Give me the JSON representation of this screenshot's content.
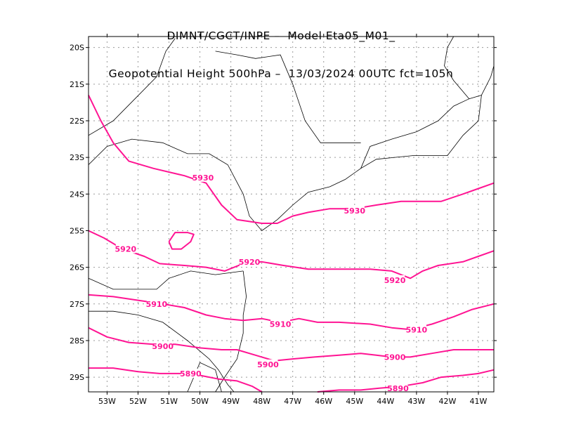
{
  "header": {
    "line1": "DIMNT/CGCT/INPE –  Model Eta05_M01_",
    "line2": "Geopotential Height 500hPa –  13/03/2024 00UTC fct=105h"
  },
  "map": {
    "lon_range": [
      -53.6,
      -40.5
    ],
    "lat_range": [
      -29.4,
      -19.7
    ],
    "lat_ticks": [
      "20S",
      "21S",
      "22S",
      "23S",
      "24S",
      "25S",
      "26S",
      "27S",
      "28S",
      "29S"
    ],
    "lon_ticks": [
      "53W",
      "52W",
      "51W",
      "50W",
      "49W",
      "48W",
      "47W",
      "46W",
      "45W",
      "44W",
      "43W",
      "42W",
      "41W"
    ],
    "grid": "on",
    "contour_color": "#ff1493",
    "border_color": "#000000",
    "contours": [
      {
        "level": "5930",
        "points": [
          [
            -53.6,
            -21.3
          ],
          [
            -53.2,
            -22.0
          ],
          [
            -52.8,
            -22.6
          ],
          [
            -52.3,
            -23.1
          ],
          [
            -51.5,
            -23.3
          ],
          [
            -50.5,
            -23.5
          ],
          [
            -49.8,
            -23.7
          ],
          [
            -49.3,
            -24.3
          ],
          [
            -48.8,
            -24.7
          ],
          [
            -48.0,
            -24.8
          ],
          [
            -47.5,
            -24.8
          ],
          [
            -47.0,
            -24.6
          ],
          [
            -46.5,
            -24.5
          ],
          [
            -45.8,
            -24.4
          ],
          [
            -45.0,
            -24.4
          ],
          [
            -44.3,
            -24.3
          ],
          [
            -43.5,
            -24.2
          ],
          [
            -42.8,
            -24.2
          ],
          [
            -42.2,
            -24.2
          ],
          [
            -41.5,
            -24.0
          ],
          [
            -41.0,
            -23.85
          ],
          [
            -40.5,
            -23.7
          ]
        ]
      },
      {
        "level": "5920",
        "points": [
          [
            -53.6,
            -25.0
          ],
          [
            -53.1,
            -25.2
          ],
          [
            -52.5,
            -25.5
          ],
          [
            -51.8,
            -25.7
          ],
          [
            -51.3,
            -25.9
          ],
          [
            -50.5,
            -25.95
          ],
          [
            -49.8,
            -26.0
          ],
          [
            -49.2,
            -26.1
          ],
          [
            -48.6,
            -25.9
          ],
          [
            -48.0,
            -25.85
          ],
          [
            -47.3,
            -25.95
          ],
          [
            -46.5,
            -26.05
          ],
          [
            -45.5,
            -26.05
          ],
          [
            -44.5,
            -26.05
          ],
          [
            -43.8,
            -26.1
          ],
          [
            -43.2,
            -26.3
          ],
          [
            -42.8,
            -26.1
          ],
          [
            -42.3,
            -25.95
          ],
          [
            -41.5,
            -25.85
          ],
          [
            -41.0,
            -25.7
          ],
          [
            -40.5,
            -25.55
          ]
        ]
      },
      {
        "level": "5920",
        "points": [
          [
            -51.0,
            -25.3
          ],
          [
            -50.8,
            -25.05
          ],
          [
            -50.4,
            -25.05
          ],
          [
            -50.2,
            -25.1
          ],
          [
            -50.3,
            -25.3
          ],
          [
            -50.6,
            -25.5
          ],
          [
            -50.9,
            -25.5
          ],
          [
            -51.0,
            -25.3
          ]
        ]
      },
      {
        "level": "5910",
        "points": [
          [
            -53.6,
            -26.75
          ],
          [
            -52.8,
            -26.8
          ],
          [
            -52.0,
            -26.9
          ],
          [
            -51.2,
            -27.0
          ],
          [
            -50.5,
            -27.1
          ],
          [
            -49.8,
            -27.3
          ],
          [
            -49.2,
            -27.4
          ],
          [
            -48.6,
            -27.45
          ],
          [
            -48.0,
            -27.4
          ],
          [
            -47.4,
            -27.5
          ],
          [
            -46.8,
            -27.4
          ],
          [
            -46.2,
            -27.5
          ],
          [
            -45.5,
            -27.5
          ],
          [
            -44.5,
            -27.55
          ],
          [
            -43.8,
            -27.65
          ],
          [
            -43.2,
            -27.7
          ],
          [
            -42.5,
            -27.55
          ],
          [
            -41.8,
            -27.35
          ],
          [
            -41.2,
            -27.15
          ],
          [
            -40.5,
            -27.0
          ]
        ]
      },
      {
        "level": "5900",
        "points": [
          [
            -53.6,
            -27.65
          ],
          [
            -53.0,
            -27.9
          ],
          [
            -52.3,
            -28.05
          ],
          [
            -51.5,
            -28.1
          ],
          [
            -50.8,
            -28.1
          ],
          [
            -50.0,
            -28.2
          ],
          [
            -49.3,
            -28.25
          ],
          [
            -48.8,
            -28.25
          ],
          [
            -48.2,
            -28.4
          ],
          [
            -47.6,
            -28.55
          ],
          [
            -47.0,
            -28.5
          ],
          [
            -46.3,
            -28.45
          ],
          [
            -45.5,
            -28.4
          ],
          [
            -44.8,
            -28.35
          ],
          [
            -44.3,
            -28.4
          ],
          [
            -43.8,
            -28.45
          ],
          [
            -43.2,
            -28.45
          ],
          [
            -42.5,
            -28.35
          ],
          [
            -41.8,
            -28.25
          ],
          [
            -41.0,
            -28.25
          ],
          [
            -40.5,
            -28.25
          ]
        ]
      },
      {
        "level": "5890",
        "points": [
          [
            -53.6,
            -28.75
          ],
          [
            -52.8,
            -28.75
          ],
          [
            -52.0,
            -28.85
          ],
          [
            -51.3,
            -28.9
          ],
          [
            -50.5,
            -28.9
          ],
          [
            -50.0,
            -28.95
          ],
          [
            -49.4,
            -29.05
          ],
          [
            -48.8,
            -29.1
          ],
          [
            -48.3,
            -29.25
          ],
          [
            -48.0,
            -29.4
          ]
        ]
      },
      {
        "level": "5890",
        "points": [
          [
            -46.2,
            -29.4
          ],
          [
            -45.5,
            -29.35
          ],
          [
            -44.8,
            -29.35
          ],
          [
            -44.2,
            -29.3
          ],
          [
            -43.5,
            -29.25
          ],
          [
            -42.8,
            -29.15
          ],
          [
            -42.2,
            -29.0
          ],
          [
            -41.5,
            -28.95
          ],
          [
            -41.0,
            -28.9
          ],
          [
            -40.5,
            -28.8
          ]
        ]
      }
    ],
    "contour_labels": [
      {
        "text": "5930",
        "lon": -49.9,
        "lat": -23.55
      },
      {
        "text": "5930",
        "lon": -45.0,
        "lat": -24.45
      },
      {
        "text": "5920",
        "lon": -52.4,
        "lat": -25.5
      },
      {
        "text": "5920",
        "lon": -48.4,
        "lat": -25.85
      },
      {
        "text": "5920",
        "lon": -43.7,
        "lat": -26.35
      },
      {
        "text": "5910",
        "lon": -51.4,
        "lat": -27.0
      },
      {
        "text": "5910",
        "lon": -47.4,
        "lat": -27.55
      },
      {
        "text": "5910",
        "lon": -43.0,
        "lat": -27.7
      },
      {
        "text": "5900",
        "lon": -51.2,
        "lat": -28.15
      },
      {
        "text": "5900",
        "lon": -47.8,
        "lat": -28.65
      },
      {
        "text": "5900",
        "lon": -43.7,
        "lat": -28.45
      },
      {
        "text": "5890",
        "lon": -50.3,
        "lat": -28.9
      },
      {
        "text": "5890",
        "lon": -43.6,
        "lat": -29.3
      }
    ],
    "borders": [
      [
        [
          -53.6,
          -23.2
        ],
        [
          -53.0,
          -22.7
        ],
        [
          -52.2,
          -22.5
        ],
        [
          -51.2,
          -22.6
        ],
        [
          -50.4,
          -22.9
        ],
        [
          -49.7,
          -22.9
        ],
        [
          -49.1,
          -23.2
        ],
        [
          -48.6,
          -24.0
        ],
        [
          -48.4,
          -24.6
        ],
        [
          -48.0,
          -25.0
        ]
      ],
      [
        [
          -53.6,
          -22.4
        ],
        [
          -52.8,
          -22.0
        ],
        [
          -52.1,
          -21.4
        ],
        [
          -51.4,
          -20.8
        ],
        [
          -51.1,
          -20.1
        ],
        [
          -50.8,
          -19.75
        ]
      ],
      [
        [
          -48.0,
          -25.0
        ],
        [
          -47.5,
          -24.7
        ],
        [
          -47.0,
          -24.3
        ],
        [
          -46.5,
          -23.95
        ],
        [
          -45.8,
          -23.8
        ],
        [
          -45.3,
          -23.6
        ],
        [
          -44.8,
          -23.3
        ],
        [
          -44.3,
          -23.05
        ],
        [
          -43.7,
          -23.0
        ],
        [
          -43.1,
          -22.95
        ],
        [
          -42.5,
          -22.95
        ],
        [
          -42.0,
          -22.95
        ],
        [
          -41.5,
          -22.4
        ],
        [
          -41.0,
          -22.0
        ],
        [
          -40.9,
          -21.3
        ],
        [
          -40.6,
          -20.8
        ],
        [
          -40.5,
          -20.5
        ]
      ],
      [
        [
          -44.8,
          -23.3
        ],
        [
          -44.5,
          -22.7
        ],
        [
          -43.8,
          -22.5
        ],
        [
          -43.0,
          -22.3
        ],
        [
          -42.3,
          -22.0
        ],
        [
          -41.8,
          -21.6
        ],
        [
          -41.3,
          -21.4
        ],
        [
          -40.9,
          -21.3
        ]
      ],
      [
        [
          -41.3,
          -21.4
        ],
        [
          -41.8,
          -20.9
        ],
        [
          -42.1,
          -20.5
        ],
        [
          -42.0,
          -20.0
        ],
        [
          -41.8,
          -19.7
        ]
      ],
      [
        [
          -49.5,
          -20.1
        ],
        [
          -48.8,
          -20.2
        ],
        [
          -48.2,
          -20.3
        ],
        [
          -47.4,
          -20.2
        ],
        [
          -47.0,
          -21.0
        ],
        [
          -46.6,
          -22.0
        ],
        [
          -46.1,
          -22.6
        ],
        [
          -45.3,
          -22.6
        ],
        [
          -44.8,
          -22.6
        ]
      ],
      [
        [
          -53.6,
          -26.3
        ],
        [
          -52.8,
          -26.6
        ],
        [
          -52.0,
          -26.6
        ],
        [
          -51.4,
          -26.6
        ],
        [
          -51.0,
          -26.3
        ],
        [
          -50.3,
          -26.1
        ],
        [
          -49.5,
          -26.2
        ],
        [
          -48.6,
          -26.1
        ]
      ],
      [
        [
          -53.6,
          -27.2
        ],
        [
          -52.8,
          -27.2
        ],
        [
          -52.0,
          -27.3
        ],
        [
          -51.2,
          -27.5
        ],
        [
          -50.4,
          -28.0
        ],
        [
          -49.7,
          -28.5
        ],
        [
          -49.4,
          -28.8
        ],
        [
          -49.1,
          -29.2
        ],
        [
          -48.9,
          -29.4
        ]
      ],
      [
        [
          -48.6,
          -26.1
        ],
        [
          -48.5,
          -26.8
        ],
        [
          -48.6,
          -27.3
        ],
        [
          -48.6,
          -27.8
        ],
        [
          -48.8,
          -28.5
        ],
        [
          -49.2,
          -29.0
        ],
        [
          -49.5,
          -29.4
        ]
      ],
      [
        [
          -49.3,
          -29.4
        ],
        [
          -49.5,
          -28.8
        ],
        [
          -50.0,
          -28.6
        ],
        [
          -50.2,
          -29.0
        ],
        [
          -50.4,
          -29.4
        ]
      ]
    ]
  }
}
